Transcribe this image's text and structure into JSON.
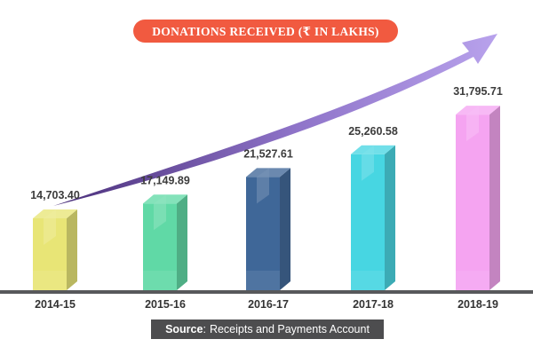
{
  "chart_data": {
    "type": "bar",
    "title": "DONATIONS RECEIVED (₹ IN LAKHS)",
    "categories": [
      "2014-15",
      "2015-16",
      "2016-17",
      "2017-18",
      "2018-19"
    ],
    "values": [
      14703.4,
      17149.89,
      21527.61,
      25260.58,
      31795.71
    ],
    "value_labels": [
      "14,703.40",
      "17,149.89",
      "21,527.61",
      "25,260.58",
      "31,795.71"
    ],
    "colors": [
      "#e6e36a",
      "#52d69e",
      "#2f5a8f",
      "#37d2e0",
      "#f49cf0"
    ],
    "grid": false,
    "legend": "none",
    "arrow_color": "#a78be0",
    "ylim": [
      0,
      35000
    ]
  },
  "source": {
    "label": "Source",
    "separator": ":",
    "text": "Receipts and Payments Account"
  }
}
